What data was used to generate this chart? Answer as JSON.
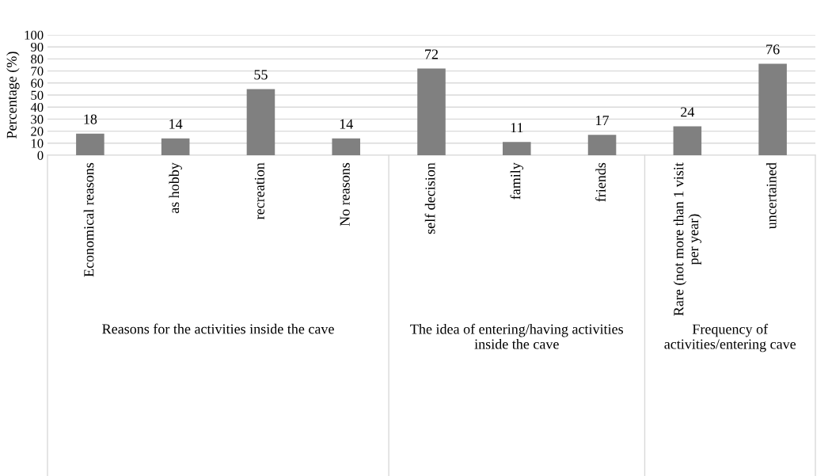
{
  "chart_data": {
    "type": "bar",
    "ylabel": "Percentage (%)",
    "categories": [
      "Economical reasons",
      "as hobby",
      "recreation",
      "No reasons",
      "self decision",
      "family",
      "friends",
      "Rare (not more than 1 visit per year)",
      "uncertained"
    ],
    "values": [
      18,
      14,
      55,
      14,
      72,
      11,
      17,
      24,
      76
    ],
    "color": "#808080",
    "ylim": [
      0,
      100
    ],
    "yticks": [
      0,
      10,
      20,
      30,
      40,
      50,
      60,
      70,
      80,
      90,
      100
    ],
    "grid": "y",
    "data_labels": true,
    "annotations": [
      "Reasons for the activities inside the cave",
      "The idea of entering/having activities inside the cave",
      "Frequency of activities/entering cave"
    ]
  }
}
